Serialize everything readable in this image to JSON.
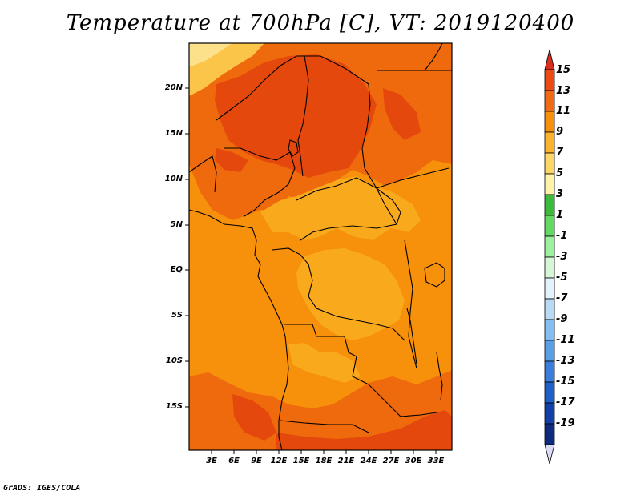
{
  "title": "Temperature at 700hPa [C], VT: 2019120400",
  "footer": "GrADS: IGES/COLA",
  "lat_labels": [
    "20N",
    "15N",
    "10N",
    "5N",
    "EQ",
    "5S",
    "10S",
    "15S"
  ],
  "lon_labels": [
    "3E",
    "6E",
    "9E",
    "12E",
    "15E",
    "18E",
    "21E",
    "24E",
    "27E",
    "30E",
    "33E"
  ],
  "colorbar": {
    "labels": [
      "15",
      "13",
      "11",
      "9",
      "7",
      "5",
      "3",
      "1",
      "-1",
      "-3",
      "-5",
      "-7",
      "-9",
      "-11",
      "-13",
      "-15",
      "-17",
      "-19"
    ],
    "colors": [
      "#d7301f",
      "#ee4a16",
      "#f26b14",
      "#f7900a",
      "#fbb32e",
      "#fcd767",
      "#fef3a8",
      "#3cba3c",
      "#64d964",
      "#9df09d",
      "#d6f7d6",
      "#e3f3fb",
      "#b7dbf7",
      "#85bff2",
      "#5a9fe8",
      "#3a7ddb",
      "#205fc8",
      "#1340a8",
      "#0d2a80"
    ],
    "under_color": "#dcdcf8",
    "over_color": "#d7301f"
  },
  "colors": {
    "c_lt5": "#fce08a",
    "c_5_7": "#fbc54a",
    "c_7_9": "#f9a91c",
    "c_9_11": "#f7900a",
    "c_11_13": "#ef6a0d",
    "c_13_15": "#e5480d"
  }
}
